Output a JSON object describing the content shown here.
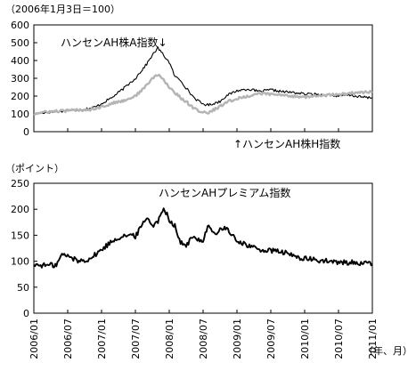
{
  "chart_data": [
    {
      "type": "line",
      "title": "",
      "unit_note": "（2006年1月3日＝100）",
      "xlabel": "",
      "ylabel": "",
      "ylim": [
        0,
        600
      ],
      "yticks": [
        "0",
        "100",
        "200",
        "300",
        "400",
        "500",
        "600"
      ],
      "xlim": [
        0,
        60
      ],
      "grid": false,
      "series": [
        {
          "name": "ハンセンAH株A指数",
          "label_text": "ハンセンAH株A指数↓",
          "color": "#000000",
          "x": [
            0,
            2,
            4,
            6,
            8,
            10,
            11,
            12,
            14,
            16,
            18,
            19,
            20,
            21,
            22,
            23,
            24,
            25,
            26,
            27,
            28,
            29,
            30,
            31,
            32,
            33,
            34,
            36,
            38,
            40,
            42,
            44,
            46,
            48,
            50,
            52,
            54,
            56,
            58,
            60
          ],
          "values": [
            100,
            108,
            112,
            120,
            124,
            132,
            140,
            158,
            195,
            245,
            300,
            340,
            380,
            430,
            470,
            430,
            390,
            310,
            290,
            245,
            205,
            175,
            155,
            150,
            160,
            170,
            200,
            230,
            240,
            225,
            235,
            225,
            220,
            212,
            210,
            205,
            200,
            205,
            195,
            190
          ]
        },
        {
          "name": "ハンセンAH株H指数",
          "label_text": "↑ハンセンAH株H指数",
          "color": "#b4b4b4",
          "x": [
            0,
            2,
            4,
            6,
            8,
            10,
            12,
            14,
            16,
            18,
            19,
            20,
            21,
            22,
            23,
            24,
            25,
            26,
            27,
            28,
            29,
            30,
            31,
            32,
            33,
            34,
            36,
            38,
            40,
            42,
            44,
            46,
            48,
            50,
            52,
            54,
            56,
            58,
            60
          ],
          "values": [
            100,
            110,
            115,
            118,
            122,
            125,
            140,
            160,
            175,
            200,
            230,
            260,
            300,
            320,
            290,
            250,
            220,
            190,
            170,
            140,
            120,
            110,
            105,
            125,
            140,
            165,
            185,
            200,
            215,
            210,
            205,
            200,
            195,
            200,
            205,
            210,
            215,
            220,
            225
          ]
        }
      ]
    },
    {
      "type": "line",
      "title": "",
      "unit_note": "（ポイント）",
      "xlabel": "（年、月）",
      "ylabel": "",
      "ylim": [
        0,
        250
      ],
      "yticks": [
        "0",
        "50",
        "100",
        "150",
        "200",
        "250"
      ],
      "xlim": [
        0,
        60
      ],
      "grid": false,
      "series": [
        {
          "name": "ハンセンAHプレミアム指数",
          "label_text": "ハンセンAHプレミアム指数",
          "color": "#000000",
          "x": [
            0,
            2,
            4,
            5,
            6,
            8,
            10,
            12,
            14,
            16,
            18,
            20,
            21,
            22,
            23,
            24,
            25,
            26,
            27,
            28,
            30,
            31,
            32,
            33,
            34,
            35,
            36,
            38,
            40,
            42,
            44,
            46,
            48,
            50,
            52,
            54,
            56,
            58,
            60
          ],
          "values": [
            93,
            92,
            93,
            113,
            110,
            100,
            105,
            122,
            140,
            150,
            148,
            185,
            170,
            175,
            205,
            180,
            168,
            135,
            130,
            145,
            140,
            172,
            150,
            160,
            165,
            150,
            140,
            130,
            122,
            120,
            118,
            110,
            105,
            102,
            100,
            97,
            98,
            96,
            95
          ]
        }
      ]
    }
  ],
  "x_axis": {
    "tick_labels": [
      "2006/01",
      "2006/07",
      "2007/01",
      "2007/07",
      "2008/01",
      "2008/07",
      "2009/01",
      "2009/07",
      "2010/01",
      "2010/07",
      "2011/01"
    ],
    "tick_positions": [
      0,
      6,
      12,
      18,
      24,
      30,
      36,
      42,
      48,
      54,
      60
    ],
    "unit_label": "（年、月）"
  }
}
